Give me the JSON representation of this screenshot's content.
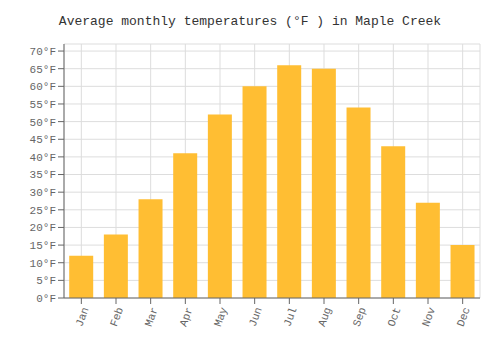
{
  "chart_data": {
    "type": "bar",
    "title": "Average monthly temperatures (°F ) in Maple Creek",
    "categories": [
      "Jan",
      "Feb",
      "Mar",
      "Apr",
      "May",
      "Jun",
      "Jul",
      "Aug",
      "Sep",
      "Oct",
      "Nov",
      "Dec"
    ],
    "values": [
      12,
      18,
      28,
      41,
      52,
      60,
      66,
      65,
      54,
      43,
      27,
      15
    ],
    "color": "#FFBE33",
    "ylim": [
      0,
      72
    ],
    "yticks": [
      {
        "value": 0,
        "label": "0°F"
      },
      {
        "value": 5,
        "label": "5°F"
      },
      {
        "value": 10,
        "label": "10°F"
      },
      {
        "value": 15,
        "label": "15°F"
      },
      {
        "value": 20,
        "label": "20°F"
      },
      {
        "value": 25,
        "label": "25°F"
      },
      {
        "value": 30,
        "label": "30°F"
      },
      {
        "value": 35,
        "label": "35°F"
      },
      {
        "value": 40,
        "label": "40°F"
      },
      {
        "value": 45,
        "label": "45°F"
      },
      {
        "value": 50,
        "label": "50°F"
      },
      {
        "value": 55,
        "label": "55°F"
      },
      {
        "value": 60,
        "label": "60°F"
      },
      {
        "value": 65,
        "label": "65°F"
      },
      {
        "value": 70,
        "label": "70°F"
      }
    ],
    "grid": true
  }
}
